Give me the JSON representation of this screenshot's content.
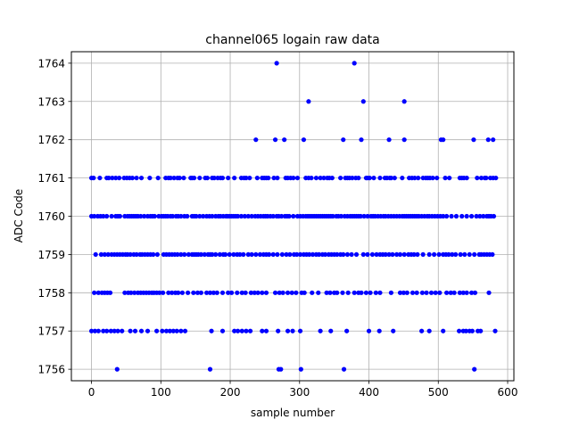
{
  "chart_data": {
    "type": "scatter",
    "title": "channel065 logain raw data",
    "xlabel": "sample number",
    "ylabel": "ADC Code",
    "xlim": [
      -29,
      609
    ],
    "ylim": [
      1755.7,
      1764.3
    ],
    "xticks": [
      0,
      100,
      200,
      300,
      400,
      500,
      600
    ],
    "yticks": [
      1756,
      1757,
      1758,
      1759,
      1760,
      1761,
      1762,
      1763,
      1764
    ],
    "grid": true,
    "marker_color": "#0000ff",
    "series": [
      {
        "values_by_level": {
          "1764": [
            267,
            379
          ],
          "1763": [
            313,
            392,
            451
          ],
          "1762": [
            237,
            265,
            278,
            306,
            363,
            389,
            429,
            451,
            504,
            507,
            551,
            572,
            579
          ],
          "1761": [
            0,
            3,
            12,
            22,
            25,
            30,
            35,
            40,
            47,
            51,
            55,
            59,
            65,
            72,
            84,
            96,
            107,
            111,
            114,
            119,
            124,
            127,
            133,
            143,
            145,
            148,
            156,
            164,
            167,
            174,
            177,
            182,
            186,
            189,
            197,
            206,
            216,
            220,
            223,
            228,
            239,
            246,
            249,
            252,
            255,
            263,
            268,
            280,
            283,
            287,
            291,
            297,
            309,
            313,
            317,
            324,
            330,
            335,
            340,
            343,
            347,
            359,
            366,
            369,
            372,
            376,
            381,
            385,
            396,
            398,
            401,
            407,
            416,
            423,
            426,
            430,
            432,
            437,
            448,
            458,
            462,
            466,
            471,
            478,
            482,
            485,
            488,
            492,
            498,
            510,
            516,
            531,
            534,
            537,
            541,
            556,
            562,
            567,
            569,
            575,
            579,
            583
          ],
          "1760": [
            0,
            4,
            9,
            13,
            17,
            22,
            29,
            35,
            38,
            41,
            48,
            52,
            55,
            58,
            61,
            64,
            67,
            71,
            76,
            81,
            85,
            88,
            91,
            97,
            101,
            104,
            107,
            110,
            114,
            117,
            122,
            125,
            129,
            134,
            138,
            145,
            148,
            151,
            156,
            161,
            166,
            170,
            174,
            179,
            183,
            186,
            190,
            194,
            196,
            199,
            202,
            205,
            208,
            211,
            216,
            221,
            226,
            231,
            236,
            240,
            244,
            248,
            251,
            254,
            258,
            262,
            267,
            270,
            274,
            279,
            282,
            285,
            291,
            297,
            301,
            305,
            309,
            312,
            315,
            318,
            321,
            324,
            327,
            330,
            333,
            336,
            339,
            342,
            345,
            348,
            353,
            356,
            360,
            365,
            369,
            373,
            376,
            379,
            382,
            385,
            388,
            393,
            398,
            403,
            406,
            409,
            413,
            417,
            421,
            424,
            428,
            432,
            436,
            440,
            444,
            448,
            451,
            454,
            457,
            460,
            463,
            466,
            469,
            472,
            476,
            480,
            484,
            487,
            491,
            495,
            499,
            503,
            507,
            512,
            519,
            526,
            534,
            541,
            548,
            555,
            560,
            565,
            570,
            573,
            576,
            580
          ],
          "1759": [
            6,
            14,
            19,
            24,
            29,
            33,
            37,
            41,
            45,
            49,
            52,
            56,
            61,
            65,
            70,
            73,
            77,
            81,
            85,
            89,
            95,
            104,
            108,
            112,
            116,
            120,
            124,
            129,
            134,
            140,
            145,
            148,
            151,
            154,
            158,
            163,
            168,
            171,
            174,
            179,
            185,
            190,
            193,
            199,
            205,
            210,
            214,
            219,
            226,
            231,
            237,
            243,
            248,
            252,
            256,
            262,
            268,
            275,
            281,
            286,
            292,
            296,
            301,
            306,
            310,
            314,
            319,
            324,
            328,
            333,
            337,
            342,
            346,
            350,
            354,
            359,
            363,
            369,
            375,
            382,
            392,
            398,
            405,
            411,
            416,
            420,
            424,
            429,
            434,
            440,
            445,
            451,
            457,
            461,
            465,
            470,
            478,
            487,
            494,
            501,
            507,
            511,
            515,
            520,
            525,
            532,
            538,
            545,
            552,
            559,
            562,
            566,
            570,
            574,
            578
          ],
          "1758": [
            4,
            10,
            15,
            19,
            23,
            27,
            48,
            53,
            57,
            62,
            67,
            71,
            75,
            79,
            83,
            87,
            90,
            94,
            98,
            103,
            111,
            116,
            121,
            125,
            131,
            139,
            147,
            153,
            158,
            166,
            171,
            176,
            181,
            189,
            197,
            202,
            210,
            217,
            222,
            230,
            235,
            240,
            246,
            252,
            265,
            271,
            276,
            283,
            289,
            295,
            303,
            307,
            318,
            327,
            339,
            344,
            350,
            354,
            362,
            370,
            379,
            385,
            389,
            396,
            402,
            410,
            416,
            432,
            445,
            450,
            455,
            463,
            469,
            477,
            483,
            490,
            496,
            502,
            512,
            518,
            523,
            531,
            536,
            541,
            548,
            553,
            573
          ],
          "1757": [
            0,
            5,
            10,
            17,
            22,
            28,
            33,
            38,
            44,
            56,
            63,
            72,
            81,
            94,
            102,
            108,
            113,
            118,
            123,
            129,
            135,
            173,
            189,
            206,
            211,
            217,
            223,
            229,
            246,
            252,
            269,
            283,
            290,
            301,
            330,
            345,
            368,
            400,
            415,
            435,
            476,
            487,
            507,
            530,
            536,
            540,
            545,
            549,
            557,
            561,
            582
          ],
          "1756": [
            37,
            171,
            270,
            273,
            302,
            364,
            552
          ]
        }
      }
    ]
  }
}
